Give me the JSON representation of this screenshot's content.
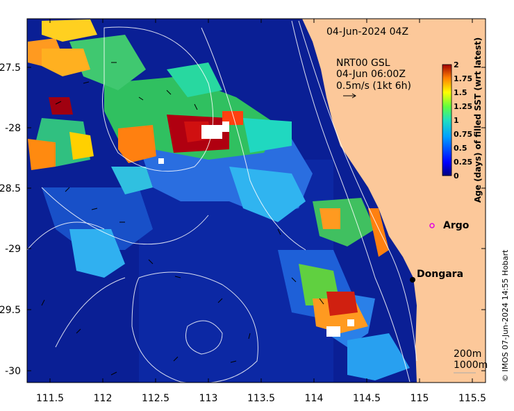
{
  "map": {
    "date_label": "04-Jun-2024 04Z",
    "current_info": {
      "line1": "NRT00 GSL",
      "line2": "04-Jun 06:00Z",
      "line3": "0.5m/s (1kt 6h)"
    },
    "depth_contours": {
      "label1": "200m",
      "label2": "1000m"
    },
    "credit": "© IMOS 07-Jun-2024 14:55 Hobart",
    "x_ticks": [
      "111.5",
      "112",
      "112.5",
      "113",
      "113.5",
      "114",
      "114.5",
      "115",
      "115.5"
    ],
    "y_ticks": [
      "-27.5",
      "-28",
      "-28.5",
      "-29",
      "-29.5",
      "-30"
    ],
    "colorbar": {
      "title": "Age (days) of filled SST (wrt latest)",
      "ticks": [
        "2",
        "1.75",
        "1.5",
        "1.25",
        "1",
        "0.75",
        "0.5",
        "0.25",
        "0"
      ]
    },
    "places": {
      "argo": "Argo",
      "dongara": "Dongara"
    },
    "colors": {
      "land": "#fcc89a",
      "ocean_base": "#0a1a8c",
      "contour": "#ffffff"
    }
  }
}
